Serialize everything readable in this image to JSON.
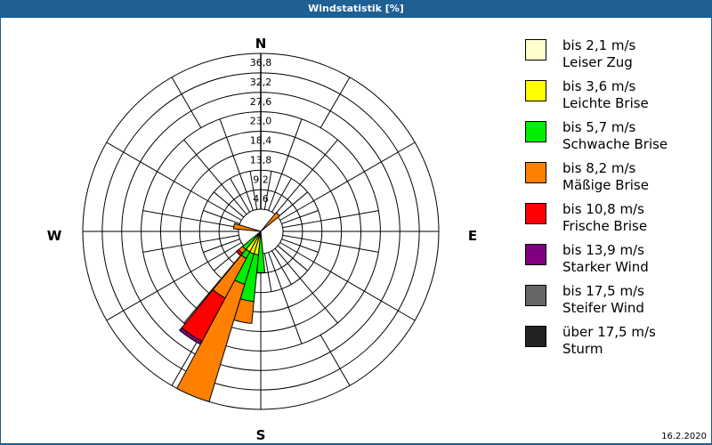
{
  "title": "Windstatistik [%]",
  "date": "16.2.2020",
  "directions": {
    "n": "N",
    "e": "E",
    "s": "S",
    "w": "W"
  },
  "chart_data": {
    "type": "wind-rose",
    "title": "Windstatistik [%]",
    "unit": "%",
    "rings": [
      "4,6",
      "9,2",
      "13,8",
      "18,4",
      "23,0",
      "27,6",
      "32,2",
      "36,8"
    ],
    "rmax": 36.8,
    "sector_count": 32,
    "speed_classes": [
      {
        "range": "bis 2,1 m/s",
        "name": "Leiser Zug",
        "color": "#ffffcc"
      },
      {
        "range": "bis 3,6 m/s",
        "name": "Leichte Brise",
        "color": "#ffff00"
      },
      {
        "range": "bis 5,7 m/s",
        "name": "Schwache Brise",
        "color": "#00ee00"
      },
      {
        "range": "bis 8,2 m/s",
        "name": "Mäßige Brise",
        "color": "#ff8000"
      },
      {
        "range": "bis 10,8 m/s",
        "name": "Frische Brise",
        "color": "#ff0000"
      },
      {
        "range": "bis 13,9 m/s",
        "name": "Starker Wind",
        "color": "#800080"
      },
      {
        "range": "bis 17,5 m/s",
        "name": "Steifer Wind",
        "color": "#666666"
      },
      {
        "range": "über 17,5 m/s",
        "name": "Sturm",
        "color": "#222222"
      }
    ],
    "sectors": [
      {
        "angle": 180.0,
        "cumulative": [
          0,
          0,
          4.5,
          4.5,
          4.5,
          4.5,
          4.5,
          4.5
        ]
      },
      {
        "angle": 191.25,
        "cumulative": [
          0,
          0.3,
          11.4,
          16.6,
          16.6,
          16.6,
          16.6,
          16.6
        ]
      },
      {
        "angle": 202.5,
        "cumulative": [
          0,
          0.3,
          7.8,
          36.8,
          36.8,
          36.8,
          36.8,
          36.8
        ]
      },
      {
        "angle": 213.75,
        "cumulative": [
          0,
          0.2,
          2.0,
          12.6,
          24.2,
          25.0,
          25.0,
          25.0
        ]
      },
      {
        "angle": 225.0,
        "cumulative": [
          0,
          0,
          0.3,
          1.5,
          2.2,
          2.2,
          2.2,
          2.2
        ]
      },
      {
        "angle": 281.25,
        "cumulative": [
          0,
          0,
          0,
          1.2,
          1.2,
          1.2,
          1.2,
          1.2
        ]
      },
      {
        "angle": 45.0,
        "cumulative": [
          0,
          0,
          0,
          0.5,
          0.5,
          0.5,
          0.5,
          0.5
        ]
      }
    ]
  }
}
